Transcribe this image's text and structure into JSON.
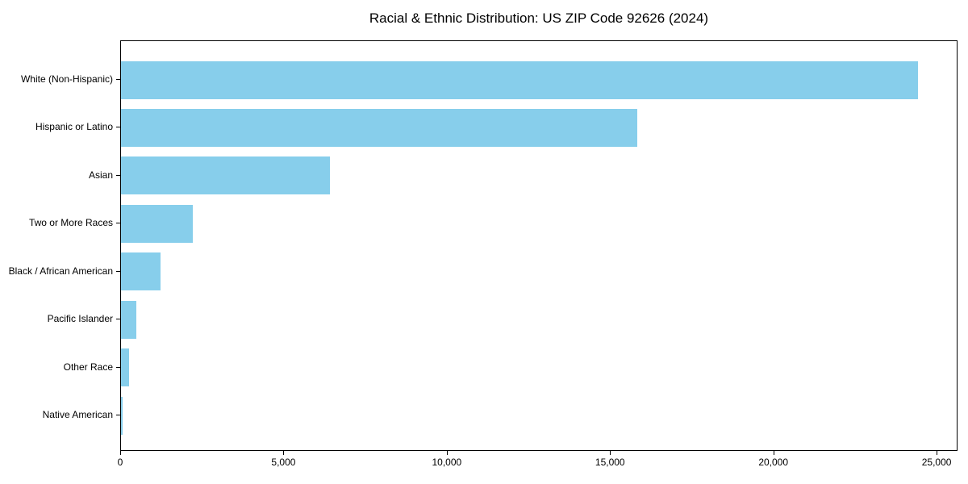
{
  "page": {
    "background_color": "#ffffff",
    "text_color": "#000000"
  },
  "chart_data": {
    "type": "bar",
    "orientation": "horizontal",
    "title": "Racial & Ethnic Distribution: US ZIP Code 92626 (2024)",
    "categories": [
      "White (Non-Hispanic)",
      "Hispanic or Latino",
      "Asian",
      "Two or More Races",
      "Black / African American",
      "Pacific Islander",
      "Other Race",
      "Native American"
    ],
    "values": [
      24400,
      15800,
      6400,
      2200,
      1200,
      460,
      240,
      40
    ],
    "xlabel": "",
    "ylabel": "",
    "xlim": [
      0,
      25640
    ],
    "x_ticks": [
      0,
      5000,
      10000,
      15000,
      20000,
      25000
    ],
    "x_tick_labels": [
      "0",
      "5,000",
      "10,000",
      "15,000",
      "20,000",
      "25,000"
    ],
    "bar_color": "#87CEEB",
    "axis_color": "#000000",
    "grid": false,
    "legend_position": "none"
  }
}
